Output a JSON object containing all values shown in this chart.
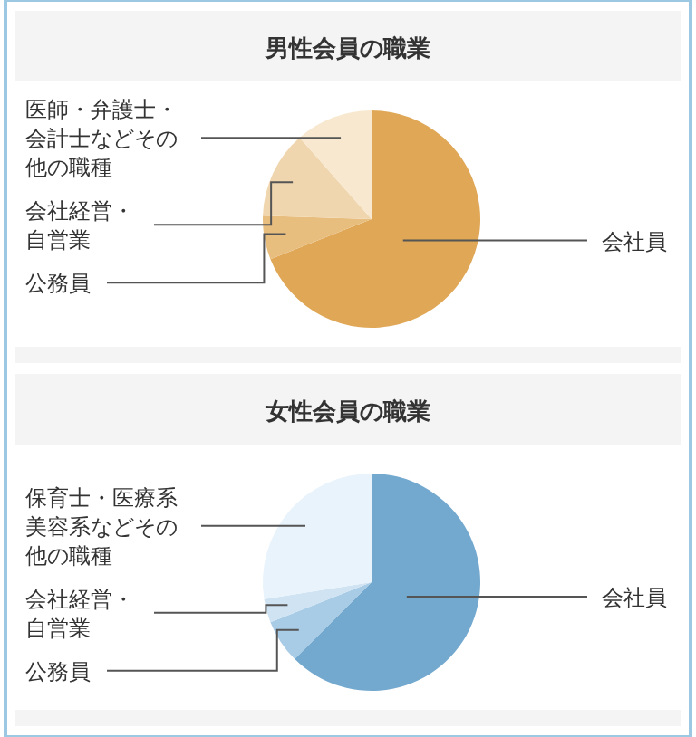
{
  "chart_data": [
    {
      "type": "pie",
      "title": "男性会員の職業",
      "categories": [
        "会社員",
        "公務員",
        "会社経営・自営業",
        "医師・弁護士・会計士などその他の職種"
      ],
      "values": [
        69,
        6.5,
        13,
        11.5
      ],
      "colors": [
        "#dfa756",
        "#e8be7f",
        "#f0d6ae",
        "#f8e8cf"
      ]
    },
    {
      "type": "pie",
      "title": "女性会員の職業",
      "categories": [
        "会社員",
        "公務員",
        "会社経営・自営業",
        "保育士・医療系美容系などその他の職種"
      ],
      "values": [
        62.5,
        6.5,
        3.5,
        27.5
      ],
      "colors": [
        "#74a9cf",
        "#a8cbe6",
        "#cfe3f2",
        "#e8f3fb"
      ]
    }
  ]
}
